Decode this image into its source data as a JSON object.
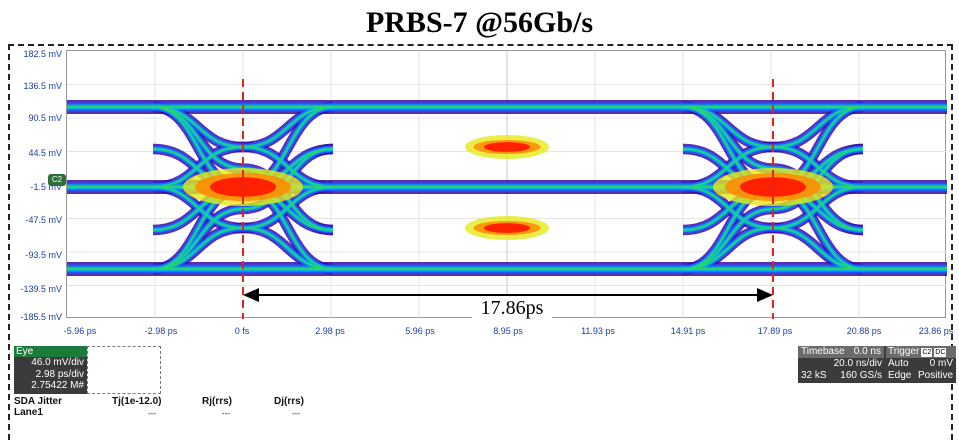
{
  "title": "PRBS-7 @56Gb/s",
  "y_axis_labels": [
    "182.5 mV",
    "136.5 mV",
    "90.5 mV",
    "44.5 mV",
    "-1.5 mV",
    "-47.5 mV",
    "-93.5 mV",
    "-139.5 mV",
    "-185.5 mV"
  ],
  "x_axis_labels": [
    "-5.96 ps",
    "-2.98 ps",
    "0 fs",
    "2.98 ps",
    "5.96 ps",
    "8.95 ps",
    "11.93 ps",
    "14.91 ps",
    "17.89 ps",
    "20.88 ps",
    "23.86 ps"
  ],
  "channel_marker": "C2",
  "measurement": {
    "label": "17.86ps"
  },
  "colors": {
    "axis_label": "#1a3e9c",
    "marker": "#e0251d",
    "eye_density": [
      "#3a0ba8",
      "#7a25d8",
      "#1f5dff",
      "#00b8e6",
      "#28d36c",
      "#e6e91c",
      "#ff8a00",
      "#ff1a00"
    ]
  },
  "eye_panel": {
    "header": "Eye",
    "lines": [
      "46.0 mV/div",
      "2.98 ps/div",
      "2.75422 M#"
    ]
  },
  "timebase_panel": {
    "timebase_label": "Timebase",
    "timebase_value": "0.0 ns",
    "trigger_label": "Trigger",
    "chip1": "C2",
    "chip2": "DC",
    "row1_left": "20.0 ns/div",
    "row1_right1": "Auto",
    "row1_right2": "0 mV",
    "row2_left1": "32 kS",
    "row2_left2": "160 GS/s",
    "row2_right1": "Edge",
    "row2_right2": "Positive"
  },
  "jitter_table": {
    "title": "SDA Jitter",
    "row_label": "Lane1",
    "headers": [
      "Tj(1e-12.0)",
      "Rj(rrs)",
      "Dj(rrs)"
    ],
    "values": [
      "---",
      "---",
      "---"
    ]
  }
}
